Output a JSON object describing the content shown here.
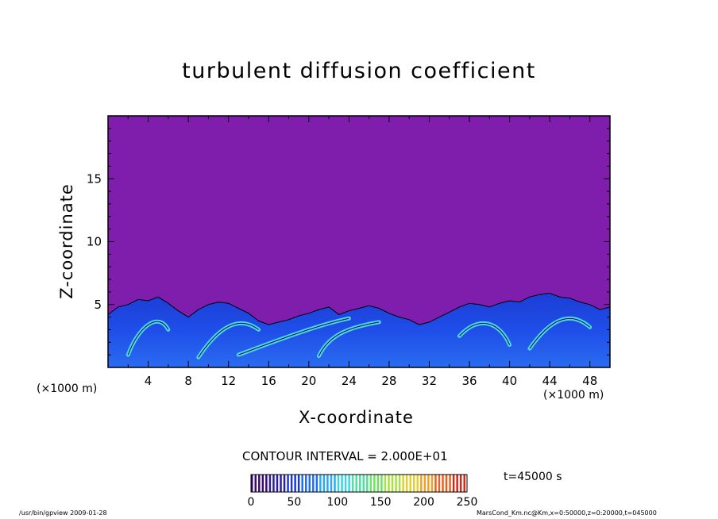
{
  "chart_data": {
    "type": "heatmap",
    "title": "turbulent diffusion coefficient",
    "xlabel": "X-coordinate",
    "ylabel": "Z-coordinate",
    "x_unit": "(×1000 m)",
    "xlim": [
      0,
      50
    ],
    "ylim": [
      0,
      20
    ],
    "x_ticks": [
      4,
      8,
      12,
      16,
      20,
      24,
      28,
      32,
      36,
      40,
      44,
      48
    ],
    "y_ticks": [
      5,
      10,
      15
    ],
    "background_value": 0,
    "background_color": "#7f1dac",
    "boundary_layer_top_km": [
      [
        0,
        4.2
      ],
      [
        1,
        4.8
      ],
      [
        2,
        5.0
      ],
      [
        3,
        5.4
      ],
      [
        4,
        5.3
      ],
      [
        5,
        5.6
      ],
      [
        6,
        5.1
      ],
      [
        7,
        4.5
      ],
      [
        8,
        4.0
      ],
      [
        9,
        4.6
      ],
      [
        10,
        5.0
      ],
      [
        11,
        5.2
      ],
      [
        12,
        5.1
      ],
      [
        13,
        4.7
      ],
      [
        14,
        4.3
      ],
      [
        15,
        3.7
      ],
      [
        16,
        3.4
      ],
      [
        17,
        3.6
      ],
      [
        18,
        3.8
      ],
      [
        19,
        4.1
      ],
      [
        20,
        4.3
      ],
      [
        21,
        4.6
      ],
      [
        22,
        4.8
      ],
      [
        23,
        4.2
      ],
      [
        24,
        4.5
      ],
      [
        25,
        4.7
      ],
      [
        26,
        4.9
      ],
      [
        27,
        4.7
      ],
      [
        28,
        4.3
      ],
      [
        29,
        4.0
      ],
      [
        30,
        3.8
      ],
      [
        31,
        3.4
      ],
      [
        32,
        3.6
      ],
      [
        33,
        4.0
      ],
      [
        34,
        4.4
      ],
      [
        35,
        4.8
      ],
      [
        36,
        5.1
      ],
      [
        37,
        5.0
      ],
      [
        38,
        4.8
      ],
      [
        39,
        5.1
      ],
      [
        40,
        5.3
      ],
      [
        41,
        5.2
      ],
      [
        42,
        5.6
      ],
      [
        43,
        5.8
      ],
      [
        44,
        5.9
      ],
      [
        45,
        5.6
      ],
      [
        46,
        5.5
      ],
      [
        47,
        5.2
      ],
      [
        48,
        5.0
      ],
      [
        49,
        4.6
      ],
      [
        50,
        4.8
      ]
    ],
    "colorbar": {
      "ticks": [
        0,
        50,
        100,
        150,
        200,
        250
      ],
      "min": 0,
      "max": 250
    },
    "contour_interval": "CONTOUR INTERVAL = 2.000E+01",
    "time_label": "t=45000 s"
  },
  "labels": {
    "x_unit_left": "(×1000 m)",
    "x_unit_right": "(×1000 m)"
  },
  "footer": {
    "left": "/usr/bin/gpview   2009-01-28",
    "right": "MarsCond_Km.nc@Km,x=0:50000,z=0:20000,t=045000"
  }
}
